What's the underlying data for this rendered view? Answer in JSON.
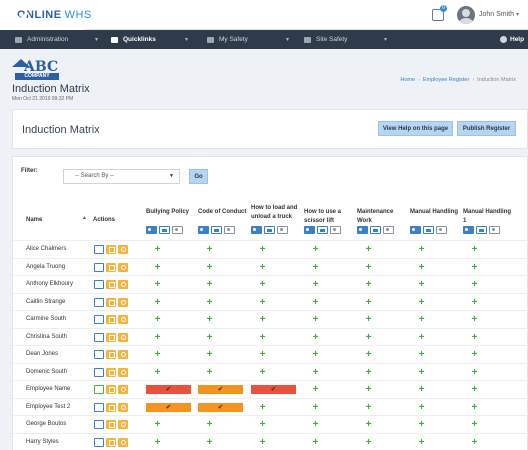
{
  "brand": {
    "name": "ONLINE",
    "suffix": "WHS"
  },
  "topbar": {
    "notification_count": "0",
    "user_name": "John Smith"
  },
  "nav": [
    {
      "label": "Administration",
      "icon": "dashboard-icon",
      "active": false
    },
    {
      "label": "Quicklinks",
      "icon": "grid-icon",
      "active": true
    },
    {
      "label": "My Safety",
      "icon": "id-card-icon",
      "active": false
    },
    {
      "label": "Site Safety",
      "icon": "building-icon",
      "active": false
    }
  ],
  "help_label": "Help",
  "company_logo": {
    "main": "ABC",
    "sub": "COMPANY"
  },
  "page": {
    "title": "Induction Matrix",
    "date": "Mon Oct 21 2019 09:32 PM"
  },
  "breadcrumb": [
    "Home",
    "Employee Register",
    "Induction Matrix"
  ],
  "card": {
    "title": "Induction Matrix",
    "help_button": "View Help on this page",
    "publish_button": "Publish Register"
  },
  "filter": {
    "label": "Filter:",
    "placeholder": "-- Search By --",
    "go_label": "Go"
  },
  "table": {
    "name_header": "Name",
    "actions_header": "Actions",
    "columns": [
      "Bullying Policy",
      "Code of Conduct",
      "How to load and unload a truck",
      "How to use a scissor lift",
      "Maintenance Work",
      "Manual Handling",
      "Manual Handling 1"
    ],
    "check_symbol": "✔",
    "plus_symbol": "+",
    "rows": [
      {
        "name": "Alice Chalmers",
        "status": [
          "plus",
          "plus",
          "plus",
          "plus",
          "plus",
          "plus",
          "plus"
        ]
      },
      {
        "name": "Angela Truong",
        "status": [
          "plus",
          "plus",
          "plus",
          "plus",
          "plus",
          "plus",
          "plus"
        ]
      },
      {
        "name": "Anthony Elkhoury",
        "status": [
          "plus",
          "plus",
          "plus",
          "plus",
          "plus",
          "plus",
          "plus"
        ]
      },
      {
        "name": "Caitlin Strange",
        "status": [
          "plus",
          "plus",
          "plus",
          "plus",
          "plus",
          "plus",
          "plus"
        ]
      },
      {
        "name": "Carmine South",
        "status": [
          "plus",
          "plus",
          "plus",
          "plus",
          "plus",
          "plus",
          "plus"
        ]
      },
      {
        "name": "Christina South",
        "status": [
          "plus",
          "plus",
          "plus",
          "plus",
          "plus",
          "plus",
          "plus"
        ]
      },
      {
        "name": "Dean Jones",
        "status": [
          "plus",
          "plus",
          "plus",
          "plus",
          "plus",
          "plus",
          "plus"
        ]
      },
      {
        "name": "Domenic South",
        "status": [
          "plus",
          "plus",
          "plus",
          "plus",
          "plus",
          "plus",
          "plus"
        ]
      },
      {
        "name": "Employee Name",
        "status": [
          "red",
          "orange",
          "red",
          "plus",
          "plus",
          "plus",
          "plus"
        ]
      },
      {
        "name": "Employee Test 2",
        "status": [
          "orange",
          "orange",
          "plus",
          "plus",
          "plus",
          "plus",
          "plus"
        ]
      },
      {
        "name": "George Boutos",
        "status": [
          "plus",
          "plus",
          "plus",
          "plus",
          "plus",
          "plus",
          "plus"
        ]
      },
      {
        "name": "Harry Styles",
        "status": [
          "plus",
          "plus",
          "plus",
          "plus",
          "plus",
          "plus",
          "plus"
        ]
      }
    ]
  },
  "colors": {
    "nav_bg": "#2f3b4a",
    "accent": "#3b82c4",
    "check": "#3cae49",
    "overdue": "#e8523c",
    "pending": "#f39420",
    "action": "#f5b53c"
  }
}
